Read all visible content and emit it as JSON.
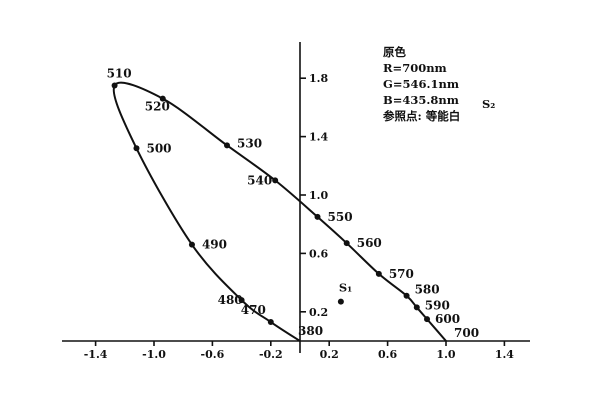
{
  "chart_data": {
    "type": "scatter",
    "xlim": [
      -1.6,
      1.6
    ],
    "ylim": [
      0,
      2.1
    ],
    "x_ticks": [
      -1.4,
      -1.0,
      -0.6,
      -0.2,
      0.2,
      0.6,
      1.0,
      1.4
    ],
    "x_tick_labels": [
      "-1.4",
      "-1.0",
      "-0.6",
      "-0.2",
      "0.2",
      "0.6",
      "1.0",
      "1.4"
    ],
    "y_ticks": [
      0.2,
      0.6,
      1.0,
      1.4,
      1.8
    ],
    "y_tick_labels": [
      "0.2",
      "0.6",
      "1.0",
      "1.4",
      "1.8"
    ],
    "spectral_locus": [
      {
        "label": "380",
        "x": 0.0,
        "y": 0.0
      },
      {
        "label": "470",
        "x": -0.2,
        "y": 0.13
      },
      {
        "label": "480",
        "x": -0.4,
        "y": 0.28
      },
      {
        "label": "490",
        "x": -0.74,
        "y": 0.66
      },
      {
        "label": "500",
        "x": -1.12,
        "y": 1.32
      },
      {
        "label": "510",
        "x": -1.27,
        "y": 1.75
      },
      {
        "label": "520",
        "x": -0.94,
        "y": 1.66
      },
      {
        "label": "530",
        "x": -0.5,
        "y": 1.34
      },
      {
        "label": "540",
        "x": -0.17,
        "y": 1.1
      },
      {
        "label": "550",
        "x": 0.12,
        "y": 0.85
      },
      {
        "label": "560",
        "x": 0.32,
        "y": 0.67
      },
      {
        "label": "570",
        "x": 0.54,
        "y": 0.46
      },
      {
        "label": "580",
        "x": 0.73,
        "y": 0.31
      },
      {
        "label": "590",
        "x": 0.8,
        "y": 0.23
      },
      {
        "label": "600",
        "x": 0.87,
        "y": 0.15
      },
      {
        "label": "700",
        "x": 1.0,
        "y": 0.0
      }
    ],
    "points": [
      {
        "label": "S₁",
        "x": 0.28,
        "y": 0.27
      },
      {
        "label": "S₂",
        "x": 0.0,
        "y": 0.0
      }
    ],
    "annotation_lines": [
      "原色",
      "R=700nm",
      "G=546.1nm",
      "B=435.8nm",
      "参照点: 等能白"
    ]
  }
}
